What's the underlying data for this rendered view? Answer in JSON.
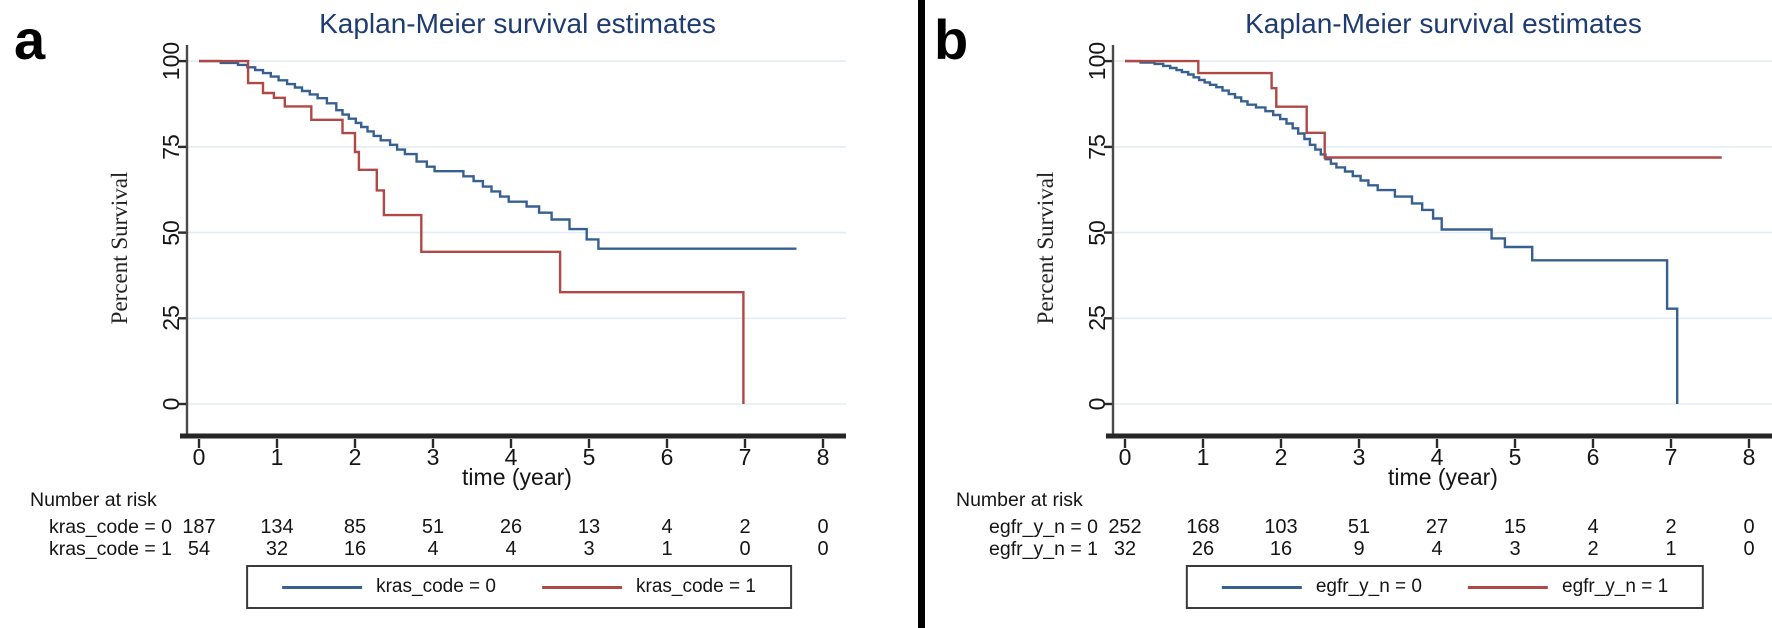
{
  "figure": {
    "background": "#ffffff",
    "divider_color": "#000000"
  },
  "style": {
    "title_color": "#1e3b72",
    "grid_color": "#e4edf3",
    "y_axis_color": "#4a4a4a",
    "x_axis_color": "#262626",
    "blue": "#376091",
    "red": "#b04846"
  },
  "chart_data": [
    {
      "type": "line",
      "step": true,
      "panel_label": "a",
      "title": "Kaplan-Meier survival estimates",
      "xlabel": "time (year)",
      "ylabel": "Percent Survival",
      "xlim": [
        0,
        8
      ],
      "ylim": [
        0,
        100
      ],
      "xticks": [
        0,
        1,
        2,
        3,
        4,
        5,
        6,
        7,
        8
      ],
      "yticks": [
        0,
        25,
        50,
        75,
        100
      ],
      "grid": "horizontal",
      "legend_position": "bottom",
      "series": [
        {
          "name": "kras_code = 0",
          "color": "#376091",
          "points": [
            [
              0,
              100
            ],
            [
              0.28,
              99.5
            ],
            [
              0.5,
              98.9
            ],
            [
              0.62,
              98.2
            ],
            [
              0.72,
              97.4
            ],
            [
              0.82,
              96.5
            ],
            [
              0.92,
              95.5
            ],
            [
              1.02,
              94.4
            ],
            [
              1.13,
              93.3
            ],
            [
              1.23,
              92.3
            ],
            [
              1.32,
              91.3
            ],
            [
              1.42,
              90.3
            ],
            [
              1.52,
              89.2
            ],
            [
              1.64,
              87.7
            ],
            [
              1.76,
              85.7
            ],
            [
              1.84,
              84.4
            ],
            [
              1.92,
              83.2
            ],
            [
              2.01,
              82.0
            ],
            [
              2.08,
              80.8
            ],
            [
              2.16,
              79.5
            ],
            [
              2.24,
              78.2
            ],
            [
              2.33,
              76.9
            ],
            [
              2.45,
              75.6
            ],
            [
              2.54,
              74.2
            ],
            [
              2.64,
              72.9
            ],
            [
              2.79,
              70.7
            ],
            [
              2.92,
              69.2
            ],
            [
              3.02,
              67.9
            ],
            [
              3.39,
              66.4
            ],
            [
              3.52,
              65.0
            ],
            [
              3.64,
              63.4
            ],
            [
              3.75,
              62.0
            ],
            [
              3.86,
              60.5
            ],
            [
              3.97,
              59.0
            ],
            [
              4.2,
              57.6
            ],
            [
              4.36,
              55.8
            ],
            [
              4.52,
              53.8
            ],
            [
              4.75,
              51.0
            ],
            [
              4.97,
              48.0
            ],
            [
              5.12,
              45.3
            ]
          ],
          "tail_end": 7.66
        },
        {
          "name": "kras_code = 1",
          "color": "#b04846",
          "points": [
            [
              0,
              100
            ],
            [
              0.63,
              93.6
            ],
            [
              0.82,
              90.7
            ],
            [
              0.96,
              89.3
            ],
            [
              1.1,
              86.8
            ],
            [
              1.44,
              82.9
            ],
            [
              1.84,
              79.0
            ],
            [
              2.0,
              73.5
            ],
            [
              2.05,
              68.3
            ],
            [
              2.28,
              62.3
            ],
            [
              2.37,
              55.1
            ],
            [
              2.85,
              44.4
            ],
            [
              4.63,
              32.6
            ],
            [
              6.98,
              0
            ]
          ]
        }
      ],
      "risk_table": {
        "header": "Number at risk",
        "rows": [
          {
            "label": "kras_code = 0",
            "counts": [
              187,
              134,
              85,
              51,
              26,
              13,
              4,
              2,
              0
            ]
          },
          {
            "label": "kras_code = 1",
            "counts": [
              54,
              32,
              16,
              4,
              4,
              3,
              1,
              0,
              0
            ]
          }
        ]
      }
    },
    {
      "type": "line",
      "step": true,
      "panel_label": "b",
      "title": "Kaplan-Meier survival estimates",
      "xlabel": "time (year)",
      "ylabel": "Percent Survival",
      "xlim": [
        0,
        8
      ],
      "ylim": [
        0,
        100
      ],
      "xticks": [
        0,
        1,
        2,
        3,
        4,
        5,
        6,
        7,
        8
      ],
      "yticks": [
        0,
        25,
        50,
        75,
        100
      ],
      "grid": "horizontal",
      "legend_position": "bottom",
      "series": [
        {
          "name": "egfr_y_n = 0",
          "color": "#376091",
          "points": [
            [
              0,
              100
            ],
            [
              0.2,
              99.6
            ],
            [
              0.38,
              99.2
            ],
            [
              0.49,
              98.6
            ],
            [
              0.58,
              98.0
            ],
            [
              0.66,
              97.4
            ],
            [
              0.73,
              96.8
            ],
            [
              0.81,
              96.1
            ],
            [
              0.88,
              95.3
            ],
            [
              0.95,
              94.5
            ],
            [
              1.02,
              93.8
            ],
            [
              1.09,
              93.1
            ],
            [
              1.17,
              92.4
            ],
            [
              1.25,
              91.4
            ],
            [
              1.33,
              90.4
            ],
            [
              1.41,
              89.4
            ],
            [
              1.49,
              88.3
            ],
            [
              1.57,
              87.3
            ],
            [
              1.68,
              86.5
            ],
            [
              1.8,
              85.4
            ],
            [
              1.9,
              84.3
            ],
            [
              1.99,
              83.1
            ],
            [
              2.07,
              81.8
            ],
            [
              2.15,
              80.4
            ],
            [
              2.22,
              78.9
            ],
            [
              2.3,
              77.3
            ],
            [
              2.37,
              75.6
            ],
            [
              2.44,
              74.2
            ],
            [
              2.51,
              72.8
            ],
            [
              2.57,
              71.4
            ],
            [
              2.64,
              70.1
            ],
            [
              2.71,
              69.0
            ],
            [
              2.82,
              67.8
            ],
            [
              2.92,
              66.5
            ],
            [
              3.02,
              65.2
            ],
            [
              3.12,
              63.8
            ],
            [
              3.24,
              62.4
            ],
            [
              3.46,
              60.5
            ],
            [
              3.68,
              58.5
            ],
            [
              3.81,
              56.6
            ],
            [
              3.95,
              54.1
            ],
            [
              4.06,
              50.9
            ],
            [
              4.7,
              48.3
            ],
            [
              4.87,
              45.8
            ],
            [
              5.22,
              41.9
            ],
            [
              6.95,
              27.8
            ],
            [
              7.08,
              0
            ]
          ]
        },
        {
          "name": "egfr_y_n = 1",
          "color": "#b04846",
          "points": [
            [
              0,
              100
            ],
            [
              0.94,
              96.5
            ],
            [
              1.88,
              92.1
            ],
            [
              1.94,
              86.7
            ],
            [
              2.33,
              79.1
            ],
            [
              2.56,
              71.9
            ]
          ],
          "tail_end": 7.65
        }
      ],
      "risk_table": {
        "header": "Number at risk",
        "rows": [
          {
            "label": "egfr_y_n = 0",
            "counts": [
              252,
              168,
              103,
              51,
              27,
              15,
              4,
              2,
              0
            ]
          },
          {
            "label": "egfr_y_n = 1",
            "counts": [
              32,
              26,
              16,
              9,
              4,
              3,
              2,
              1,
              0
            ]
          }
        ]
      }
    }
  ]
}
